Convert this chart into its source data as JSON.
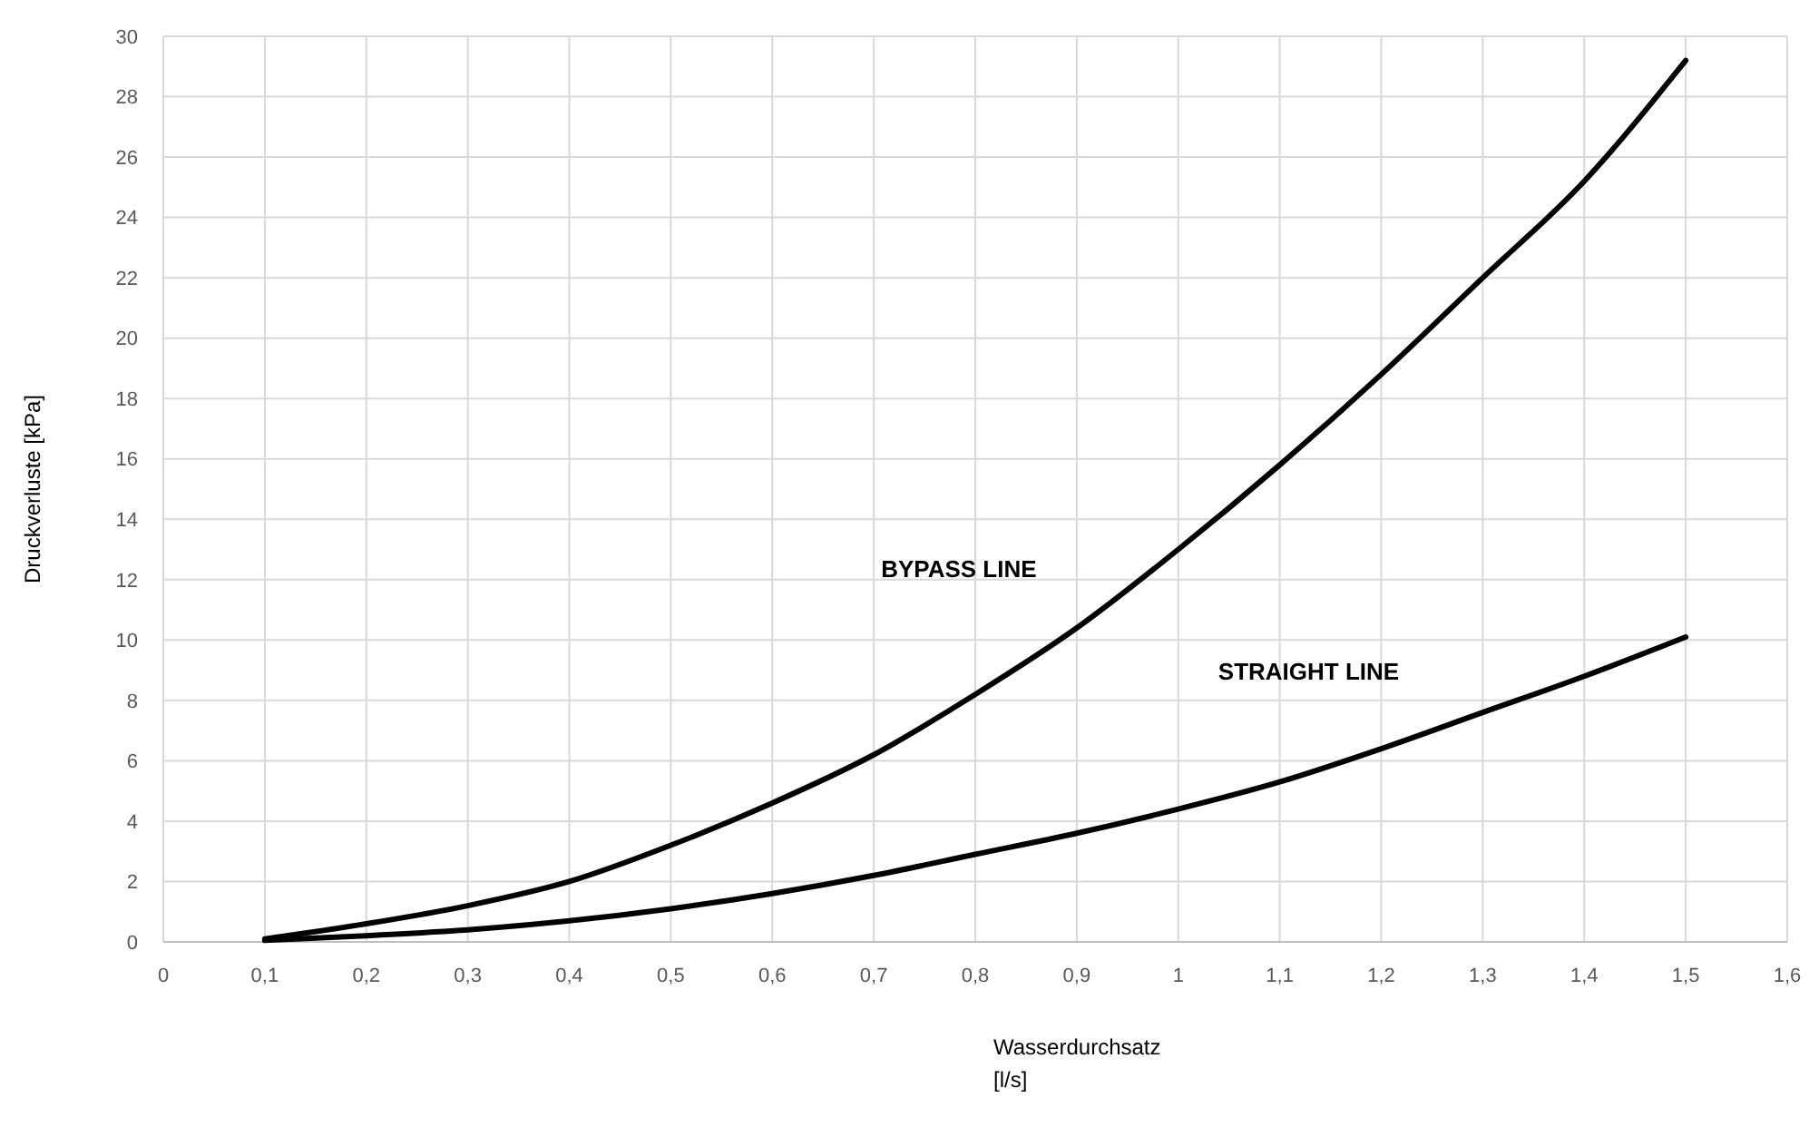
{
  "chart_data": {
    "type": "line",
    "xlabel": "Wasserdurchsatz\n[l/s]",
    "ylabel": "Druckverluste  [kPa]",
    "x": [
      0.1,
      0.2,
      0.3,
      0.4,
      0.5,
      0.6,
      0.7,
      0.8,
      0.9,
      1.0,
      1.1,
      1.2,
      1.3,
      1.4,
      1.5
    ],
    "series": [
      {
        "name": "BYPASS LINE",
        "color": "#000000",
        "values": [
          0.1,
          0.6,
          1.2,
          2.0,
          3.2,
          4.6,
          6.2,
          8.2,
          10.4,
          13.0,
          15.8,
          18.8,
          22.0,
          25.2,
          29.2
        ]
      },
      {
        "name": "STRAIGHT LINE",
        "color": "#000000",
        "values": [
          0.05,
          0.2,
          0.4,
          0.7,
          1.1,
          1.6,
          2.2,
          2.9,
          3.6,
          4.4,
          5.3,
          6.4,
          7.6,
          8.8,
          10.1
        ]
      }
    ],
    "xlim": [
      0,
      1.6
    ],
    "ylim": [
      0,
      30
    ],
    "xticks": [
      0,
      {
        "value": 0.1,
        "label": "0,1"
      },
      {
        "value": 0.2,
        "label": "0,2"
      },
      {
        "value": 0.3,
        "label": "0,3"
      },
      {
        "value": 0.4,
        "label": "0,4"
      },
      {
        "value": 0.5,
        "label": "0,5"
      },
      {
        "value": 0.6,
        "label": "0,6"
      },
      {
        "value": 0.7,
        "label": "0,7"
      },
      {
        "value": 0.8,
        "label": "0,8"
      },
      {
        "value": 0.9,
        "label": "0,9"
      },
      1,
      {
        "value": 1.1,
        "label": "1,1"
      },
      {
        "value": 1.2,
        "label": "1,2"
      },
      {
        "value": 1.3,
        "label": "1,3"
      },
      {
        "value": 1.4,
        "label": "1,4"
      },
      {
        "value": 1.5,
        "label": "1,5"
      },
      {
        "value": 1.6,
        "label": "1,6"
      }
    ],
    "yticks": [
      0,
      2,
      4,
      6,
      8,
      10,
      12,
      14,
      16,
      18,
      20,
      22,
      24,
      26,
      28,
      30
    ],
    "grid": true,
    "line_style": "solid",
    "marker": "none"
  }
}
